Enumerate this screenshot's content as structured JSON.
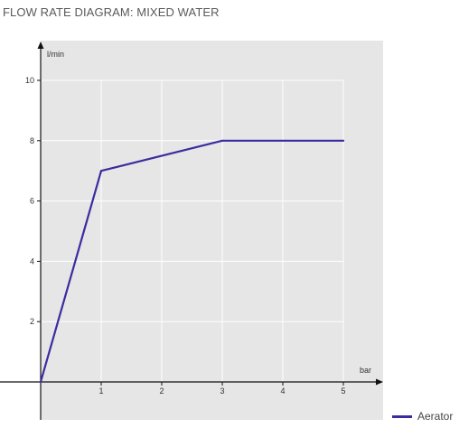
{
  "page": {
    "title": "FLOW RATE DIAGRAM: MIXED WATER"
  },
  "chart_data": {
    "type": "line",
    "title": "FLOW RATE DIAGRAM: MIXED WATER",
    "xlabel": "bar",
    "ylabel": "l/min",
    "xlim": [
      0,
      5
    ],
    "ylim": [
      0,
      10
    ],
    "x_ticks": [
      1,
      2,
      3,
      4,
      5
    ],
    "y_ticks": [
      2,
      4,
      6,
      8,
      10
    ],
    "grid": true,
    "legend_position": "bottom-right",
    "series": [
      {
        "name": "Aerator",
        "color": "#3a2ca0",
        "x": [
          0,
          1,
          3,
          5
        ],
        "y": [
          0,
          7,
          8,
          8
        ]
      }
    ]
  },
  "colors": {
    "plot_background": "#e6e6e6",
    "grid": "#ffffff",
    "axis": "#111111"
  }
}
